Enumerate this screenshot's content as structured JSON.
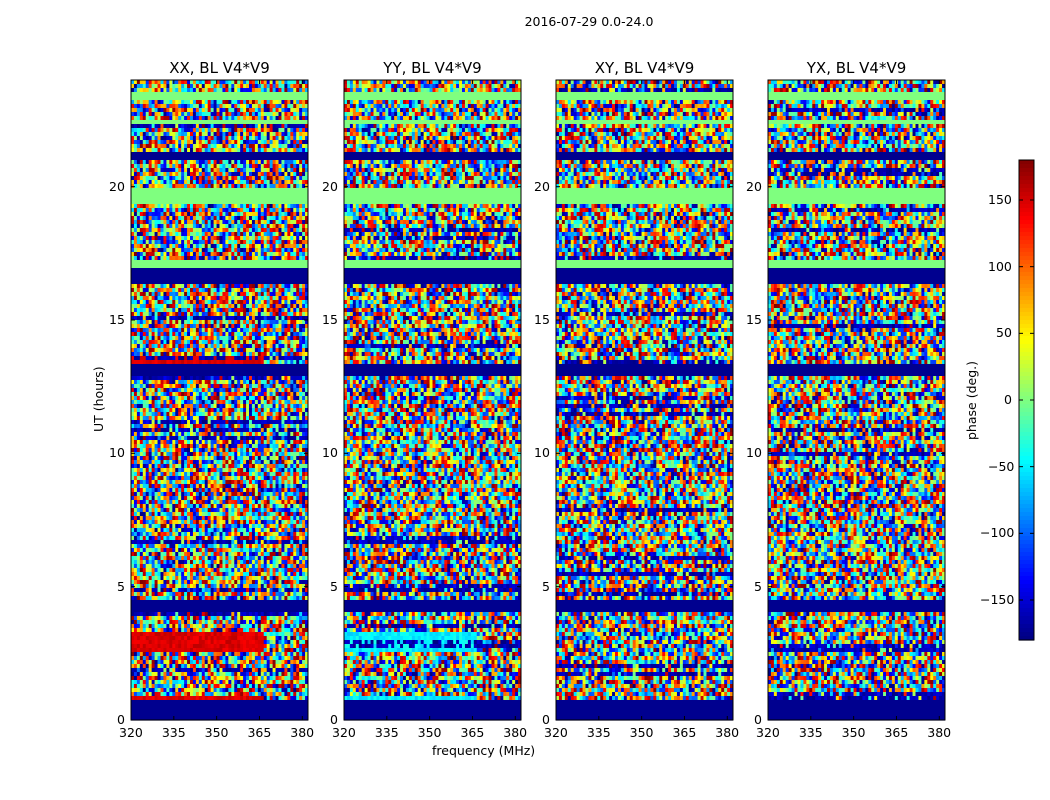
{
  "chart_data": {
    "type": "heatmap",
    "title": "2016-07-29 0.0-24.0",
    "xlabel": "frequency (MHz)",
    "ylabel": "UT (hours)",
    "colorbar_label": "phase (deg.)",
    "colormap": "jet",
    "xlim": [
      320,
      382
    ],
    "ylim": [
      0,
      24
    ],
    "clim": [
      -180,
      180
    ],
    "x_ticks": [
      320,
      335,
      350,
      365,
      380
    ],
    "y_ticks": [
      0,
      5,
      10,
      15,
      20
    ],
    "colorbar_ticks": [
      150,
      100,
      50,
      0,
      -50,
      -100,
      -150
    ],
    "colorbar_tick_labels": [
      "150",
      "100",
      "50",
      "0",
      "−50",
      "−100",
      "−150"
    ],
    "panels": [
      {
        "title": "XX, BL V4*V9"
      },
      {
        "title": "YY, BL V4*V9"
      },
      {
        "title": "XY, BL V4*V9"
      },
      {
        "title": "YX, BL V4*V9"
      }
    ]
  },
  "colors": {
    "masked_band": "#00008f",
    "flat_band": "#7fff7f"
  }
}
